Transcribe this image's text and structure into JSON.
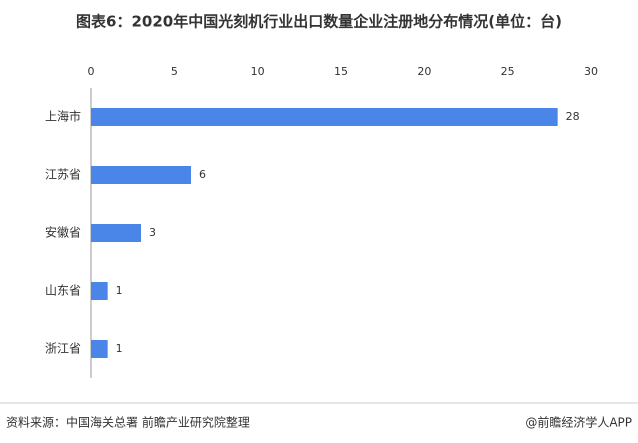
{
  "chart_data": {
    "type": "bar",
    "orientation": "horizontal",
    "title": "图表6：2020年中国光刻机行业出口数量企业注册地分布情况(单位：台)",
    "categories": [
      "上海市",
      "江苏省",
      "安徽省",
      "山东省",
      "浙江省"
    ],
    "values": [
      28,
      6,
      3,
      1,
      1
    ],
    "color": "#4a86e8",
    "xlim": [
      0,
      30
    ],
    "xticks": [
      0,
      5,
      10,
      15,
      20,
      25,
      30
    ],
    "source": "资料来源：中国海关总署 前瞻产业研究院整理",
    "credit": "@前瞻经济学人APP"
  }
}
